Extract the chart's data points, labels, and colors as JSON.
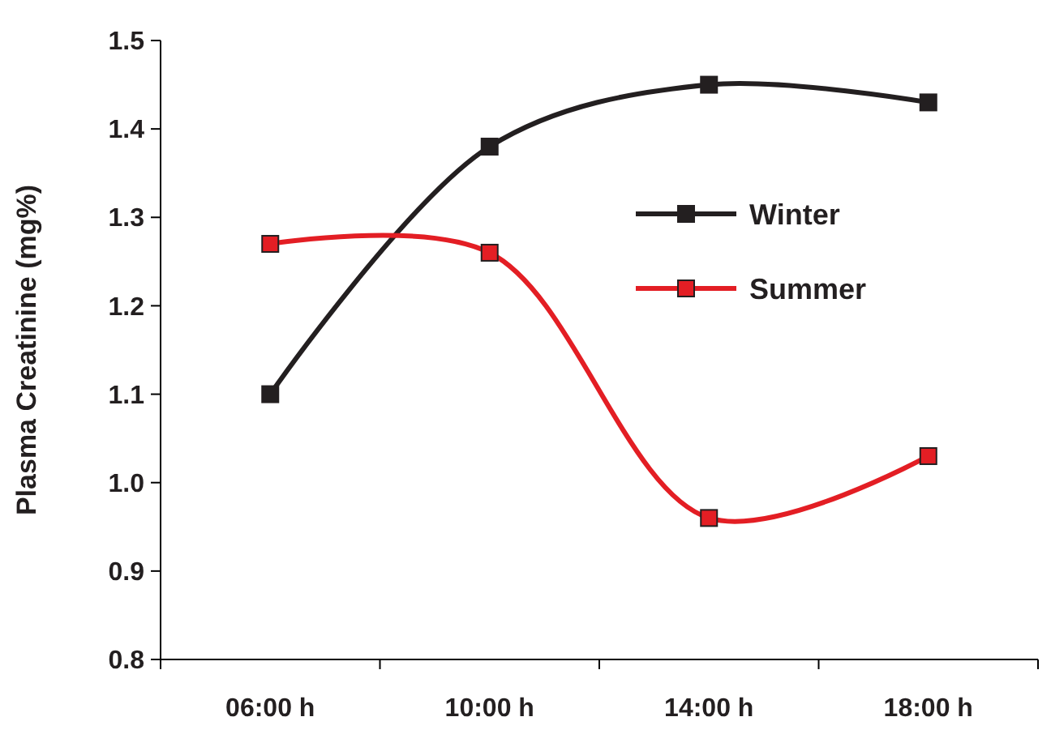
{
  "chart_data": {
    "type": "line",
    "ylabel": "Plasma Creatinine (mg%)",
    "categories": [
      "06:00 h",
      "10:00 h",
      "14:00 h",
      "18:00 h"
    ],
    "series": [
      {
        "name": "Winter",
        "color": "#231f20",
        "values": [
          1.1,
          1.38,
          1.45,
          1.43
        ]
      },
      {
        "name": "Summer",
        "color": "#e31e24",
        "values": [
          1.27,
          1.26,
          0.96,
          1.03
        ]
      }
    ],
    "ylim": [
      0.8,
      1.5
    ],
    "yticks": [
      {
        "value": 0.8,
        "label": "0.8"
      },
      {
        "value": 0.9,
        "label": "0.9"
      },
      {
        "value": 1,
        "label": "1.0"
      },
      {
        "value": 1.1,
        "label": "1.1"
      },
      {
        "value": 1.2,
        "label": "1.2"
      },
      {
        "value": 1.3,
        "label": "1.3"
      },
      {
        "value": 1.4,
        "label": "1.4"
      },
      {
        "value": 1.5,
        "label": "1.5"
      }
    ],
    "grid": false,
    "legend": "right",
    "marker": "square",
    "line_style": "solid"
  }
}
